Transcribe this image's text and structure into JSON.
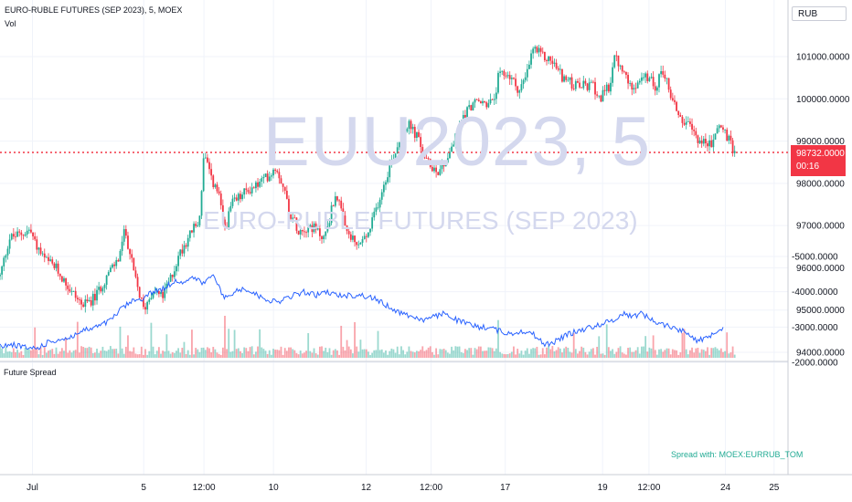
{
  "header": {
    "title": "EURO-RUBLE FUTURES (SEP 2023), 5, MOEX",
    "vol_label": "Vol"
  },
  "watermark": {
    "symbol": "EUU2023, 5",
    "description": "EURO-RUBLE FUTURES (SEP 2023)"
  },
  "currency": "RUB",
  "last_price": {
    "value": "98732.0000",
    "countdown": "00:16",
    "color": "#f23645"
  },
  "colors": {
    "up": "#22ab94",
    "down": "#f23645",
    "spread_line": "#2962ff",
    "grid": "#f0f3fa"
  },
  "chart_data": [
    {
      "type": "candlestick",
      "title": "EURO-RUBLE FUTURES (SEP 2023), 5, MOEX",
      "ylim": [
        93900,
        101700
      ],
      "y_ticks": [
        "94000.0000",
        "95000.0000",
        "96000.0000",
        "97000.0000",
        "98000.0000",
        "99000.0000",
        "100000.0000",
        "101000.0000"
      ],
      "y_tick_values": [
        94000,
        95000,
        96000,
        97000,
        98000,
        99000,
        100000,
        101000
      ],
      "x_ticks": [
        "Jul",
        "5",
        "12:00",
        "10",
        "12",
        "12:00",
        "17",
        "19",
        "12:00",
        "24",
        "25"
      ],
      "x_tick_positions": [
        0.0,
        2.4,
        3.7,
        5.2,
        7.2,
        8.6,
        10.2,
        12.3,
        13.3,
        14.95,
        16.0
      ],
      "x_range": [
        -0.7,
        16.3
      ],
      "price_path": [
        [
          -0.7,
          95800
        ],
        [
          -0.5,
          96700
        ],
        [
          -0.25,
          96800
        ],
        [
          -0.05,
          96900
        ],
        [
          0.05,
          96600
        ],
        [
          0.25,
          96200
        ],
        [
          0.5,
          96000
        ],
        [
          0.8,
          95500
        ],
        [
          1.1,
          95100
        ],
        [
          1.35,
          95300
        ],
        [
          1.6,
          95800
        ],
        [
          1.85,
          96200
        ],
        [
          2.0,
          96900
        ],
        [
          2.2,
          95800
        ],
        [
          2.4,
          95000
        ],
        [
          2.6,
          95500
        ],
        [
          2.8,
          95300
        ],
        [
          3.0,
          95800
        ],
        [
          3.2,
          96400
        ],
        [
          3.45,
          96900
        ],
        [
          3.6,
          97100
        ],
        [
          3.7,
          98700
        ],
        [
          3.85,
          98100
        ],
        [
          4.0,
          97800
        ],
        [
          4.15,
          96900
        ],
        [
          4.3,
          97500
        ],
        [
          4.6,
          97800
        ],
        [
          4.9,
          98000
        ],
        [
          5.1,
          98200
        ],
        [
          5.25,
          98400
        ],
        [
          5.4,
          98000
        ],
        [
          5.55,
          97300
        ],
        [
          5.75,
          96900
        ],
        [
          6.0,
          97000
        ],
        [
          6.3,
          96700
        ],
        [
          6.55,
          97800
        ],
        [
          6.75,
          96900
        ],
        [
          7.0,
          96500
        ],
        [
          7.25,
          96800
        ],
        [
          7.5,
          97700
        ],
        [
          7.7,
          98400
        ],
        [
          7.95,
          99100
        ],
        [
          8.1,
          99400
        ],
        [
          8.3,
          99100
        ],
        [
          8.5,
          98500
        ],
        [
          8.75,
          98300
        ],
        [
          8.9,
          98500
        ],
        [
          9.1,
          99000
        ],
        [
          9.3,
          99600
        ],
        [
          9.5,
          99900
        ],
        [
          9.75,
          99900
        ],
        [
          9.95,
          99900
        ],
        [
          10.05,
          100500
        ],
        [
          10.25,
          100600
        ],
        [
          10.5,
          100200
        ],
        [
          10.65,
          100500
        ],
        [
          10.8,
          101200
        ],
        [
          11.0,
          101000
        ],
        [
          11.2,
          100900
        ],
        [
          11.45,
          100500
        ],
        [
          11.7,
          100300
        ],
        [
          11.95,
          100300
        ],
        [
          12.1,
          100300
        ],
        [
          12.25,
          100000
        ],
        [
          12.45,
          100300
        ],
        [
          12.55,
          101000
        ],
        [
          12.75,
          100600
        ],
        [
          12.9,
          100300
        ],
        [
          13.05,
          100400
        ],
        [
          13.25,
          100500
        ],
        [
          13.45,
          100300
        ],
        [
          13.6,
          100700
        ],
        [
          13.8,
          100000
        ],
        [
          14.0,
          99500
        ],
        [
          14.2,
          99300
        ],
        [
          14.4,
          99000
        ],
        [
          14.65,
          98900
        ],
        [
          14.8,
          99400
        ],
        [
          14.95,
          99200
        ],
        [
          15.1,
          98800
        ],
        [
          15.15,
          98730
        ]
      ]
    },
    {
      "type": "line",
      "name": "Future Spread",
      "ylim": [
        -5050,
        -1950
      ],
      "y_ticks": [
        "-2000.0000",
        "-3000.0000",
        "-4000.0000",
        "-5000.0000"
      ],
      "y_tick_values": [
        -2000,
        -3000,
        -4000,
        -5000
      ],
      "x_range": [
        -0.7,
        16.3
      ],
      "source_label": "Spread with: MOEX:EURRUB_TOM",
      "points": [
        [
          -0.7,
          -2450
        ],
        [
          -0.4,
          -2500
        ],
        [
          -0.1,
          -2400
        ],
        [
          0.1,
          -2400
        ],
        [
          0.4,
          -2600
        ],
        [
          0.8,
          -2700
        ],
        [
          1.1,
          -2900
        ],
        [
          1.4,
          -3000
        ],
        [
          1.7,
          -3200
        ],
        [
          1.9,
          -3500
        ],
        [
          2.1,
          -3700
        ],
        [
          2.35,
          -3800
        ],
        [
          2.6,
          -4000
        ],
        [
          2.85,
          -4100
        ],
        [
          3.05,
          -4300
        ],
        [
          3.3,
          -4300
        ],
        [
          3.5,
          -4400
        ],
        [
          3.7,
          -4200
        ],
        [
          3.85,
          -4500
        ],
        [
          4.0,
          -4200
        ],
        [
          4.15,
          -3800
        ],
        [
          4.35,
          -4000
        ],
        [
          4.6,
          -4100
        ],
        [
          4.85,
          -3900
        ],
        [
          5.05,
          -3800
        ],
        [
          5.25,
          -3700
        ],
        [
          5.45,
          -3800
        ],
        [
          5.65,
          -3900
        ],
        [
          5.85,
          -4000
        ],
        [
          6.1,
          -3900
        ],
        [
          6.35,
          -4000
        ],
        [
          6.55,
          -3900
        ],
        [
          6.8,
          -3900
        ],
        [
          7.1,
          -3900
        ],
        [
          7.4,
          -3800
        ],
        [
          7.65,
          -3600
        ],
        [
          7.95,
          -3400
        ],
        [
          8.2,
          -3300
        ],
        [
          8.45,
          -3200
        ],
        [
          8.7,
          -3300
        ],
        [
          8.9,
          -3400
        ],
        [
          9.15,
          -3200
        ],
        [
          9.35,
          -3100
        ],
        [
          9.6,
          -3000
        ],
        [
          9.85,
          -3000
        ],
        [
          10.05,
          -2900
        ],
        [
          10.3,
          -2800
        ],
        [
          10.55,
          -2900
        ],
        [
          10.8,
          -2800
        ],
        [
          11.05,
          -2500
        ],
        [
          11.3,
          -2600
        ],
        [
          11.55,
          -2800
        ],
        [
          11.8,
          -2900
        ],
        [
          12.05,
          -3000
        ],
        [
          12.3,
          -3100
        ],
        [
          12.55,
          -3200
        ],
        [
          12.75,
          -3400
        ],
        [
          12.95,
          -3300
        ],
        [
          13.15,
          -3400
        ],
        [
          13.35,
          -3200
        ],
        [
          13.55,
          -3100
        ],
        [
          13.8,
          -3000
        ],
        [
          14.0,
          -2900
        ],
        [
          14.2,
          -2800
        ],
        [
          14.35,
          -2600
        ],
        [
          14.55,
          -2700
        ],
        [
          14.75,
          -2900
        ],
        [
          14.9,
          -3000
        ]
      ]
    }
  ]
}
